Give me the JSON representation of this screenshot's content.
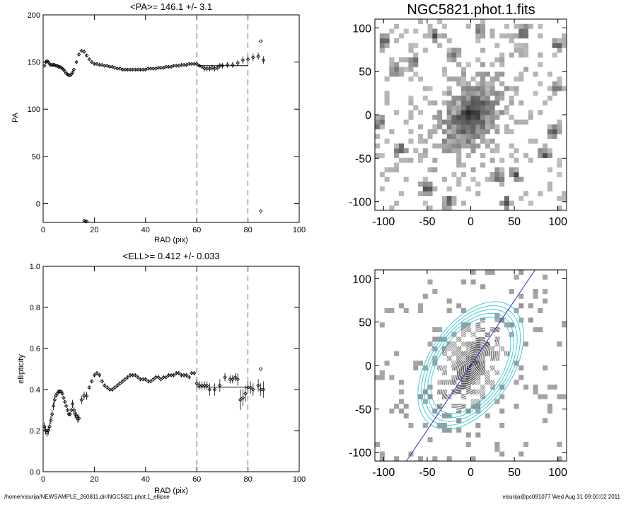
{
  "footer": {
    "path": "/home/visurija/NEWSAMPLE_260811.dir/NGC5821.phot.1_ellipse",
    "stamp": "visurija@pc091077  Wed Aug 31 09:00:02 2011"
  },
  "chart_data": [
    {
      "id": "pa",
      "type": "scatter",
      "title": "<PA>= 146.1 +/-   3.1",
      "xlabel": "RAD (pix)",
      "ylabel": "PA",
      "xlim": [
        0,
        100
      ],
      "ylim": [
        -20,
        200
      ],
      "xticks": [
        0,
        20,
        40,
        60,
        80,
        100
      ],
      "yticks": [
        0,
        50,
        100,
        150,
        200
      ],
      "vlines": [
        60,
        80
      ],
      "mean_segment": {
        "x": [
          60,
          80
        ],
        "y": 146.1
      },
      "x": [
        0.5,
        1,
        1.5,
        2,
        2.5,
        3,
        3.5,
        4,
        4.5,
        5,
        5.5,
        6,
        6.5,
        7,
        7.5,
        8,
        8.5,
        9,
        9.5,
        10,
        10.5,
        11,
        11.5,
        12,
        13,
        14,
        15,
        16,
        17,
        18,
        19,
        20,
        21,
        22,
        23,
        24,
        25,
        26,
        27,
        28,
        29,
        30,
        31,
        32,
        33,
        34,
        35,
        36,
        37,
        38,
        39,
        40,
        41,
        42,
        43,
        44,
        45,
        46,
        47,
        48,
        49,
        50,
        51,
        52,
        53,
        54,
        55,
        56,
        57,
        58,
        59,
        60,
        61,
        62,
        63,
        64,
        65,
        66,
        67,
        68,
        69,
        70,
        72,
        74,
        76,
        78,
        80,
        82,
        84,
        86
      ],
      "y": [
        146,
        150,
        151,
        150,
        148,
        147,
        147,
        147,
        147,
        146,
        146,
        145,
        145,
        144,
        143,
        142,
        140,
        138,
        137,
        136,
        136,
        137,
        139,
        142,
        150,
        158,
        162,
        161,
        157,
        153,
        150,
        148,
        148,
        147,
        147,
        146,
        146,
        145,
        145,
        144,
        143,
        143,
        142,
        142,
        142,
        142,
        142,
        142,
        142,
        142,
        142,
        142,
        143,
        143,
        143,
        143,
        144,
        144,
        144,
        145,
        145,
        145,
        146,
        146,
        146,
        147,
        147,
        147,
        148,
        148,
        148,
        148,
        146,
        145,
        143,
        143,
        143,
        144,
        143,
        144,
        146,
        146,
        147,
        147,
        149,
        152,
        153,
        155,
        156,
        152
      ],
      "err": [
        1,
        2,
        2,
        2,
        2,
        1,
        1,
        1,
        1,
        1,
        1,
        1,
        1,
        1,
        1,
        1,
        1,
        1,
        1,
        1,
        1,
        1,
        1,
        1,
        2,
        2,
        2,
        2,
        2,
        1,
        1,
        1,
        1,
        1,
        1,
        1,
        1,
        1,
        1,
        1,
        1,
        1,
        1,
        1,
        1,
        1,
        1,
        1,
        1,
        1,
        1,
        1,
        1,
        1,
        1,
        1,
        1,
        1,
        1,
        1,
        1,
        1,
        1,
        1,
        1,
        1,
        1,
        1,
        1,
        1,
        1,
        1,
        2,
        2,
        3,
        3,
        3,
        3,
        3,
        3,
        3,
        3,
        3,
        3,
        3,
        4,
        4,
        4,
        4,
        4
      ],
      "outliers": {
        "x": [
          16,
          16.5,
          17,
          85,
          85
        ],
        "y": [
          -18,
          -19,
          -19,
          -8,
          172
        ]
      }
    },
    {
      "id": "ell",
      "type": "scatter",
      "title": "<ELL>= 0.412 +/-  0.033",
      "xlabel": "RAD (pix)",
      "ylabel": "ellipticity",
      "xlim": [
        0,
        100
      ],
      "ylim": [
        0.0,
        1.0
      ],
      "xticks": [
        0,
        20,
        40,
        60,
        80,
        100
      ],
      "yticks": [
        0.0,
        0.2,
        0.4,
        0.6,
        0.8,
        1.0
      ],
      "vlines": [
        60,
        80
      ],
      "mean_segment": {
        "x": [
          60,
          80
        ],
        "y": 0.412
      },
      "x": [
        0.5,
        1,
        1.5,
        2,
        2.5,
        3,
        3.5,
        4,
        4.5,
        5,
        5.5,
        6,
        6.5,
        7,
        7.5,
        8,
        8.5,
        9,
        9.5,
        10,
        10.5,
        11,
        11.5,
        12,
        12.5,
        13,
        13.5,
        14,
        15,
        16,
        17,
        18,
        19,
        20,
        21,
        22,
        23,
        24,
        25,
        26,
        27,
        28,
        29,
        30,
        31,
        32,
        33,
        34,
        35,
        36,
        37,
        38,
        39,
        40,
        41,
        42,
        43,
        44,
        45,
        46,
        47,
        48,
        49,
        50,
        51,
        52,
        53,
        54,
        55,
        56,
        57,
        58,
        59,
        60,
        61,
        62,
        63,
        64,
        65,
        67,
        69,
        71,
        73,
        74,
        75,
        76,
        77,
        78,
        79,
        80,
        81,
        82,
        84,
        85,
        86
      ],
      "y": [
        0.22,
        0.2,
        0.19,
        0.2,
        0.22,
        0.25,
        0.28,
        0.32,
        0.35,
        0.37,
        0.38,
        0.39,
        0.39,
        0.39,
        0.38,
        0.36,
        0.34,
        0.32,
        0.3,
        0.28,
        0.28,
        0.3,
        0.33,
        0.3,
        0.28,
        0.27,
        0.26,
        0.26,
        0.35,
        0.37,
        0.37,
        0.41,
        0.44,
        0.47,
        0.48,
        0.47,
        0.44,
        0.42,
        0.41,
        0.4,
        0.4,
        0.41,
        0.42,
        0.43,
        0.44,
        0.45,
        0.46,
        0.47,
        0.47,
        0.47,
        0.46,
        0.45,
        0.45,
        0.45,
        0.44,
        0.44,
        0.45,
        0.46,
        0.46,
        0.45,
        0.46,
        0.46,
        0.47,
        0.47,
        0.47,
        0.48,
        0.48,
        0.47,
        0.47,
        0.47,
        0.46,
        0.48,
        0.48,
        0.43,
        0.42,
        0.42,
        0.42,
        0.42,
        0.4,
        0.4,
        0.42,
        0.46,
        0.45,
        0.45,
        0.46,
        0.45,
        0.35,
        0.36,
        0.38,
        0.41,
        0.41,
        0.4,
        0.42,
        0.4,
        0.4
      ],
      "err": [
        0.02,
        0.02,
        0.02,
        0.02,
        0.02,
        0.02,
        0.02,
        0.02,
        0.02,
        0.01,
        0.01,
        0.01,
        0.01,
        0.01,
        0.01,
        0.01,
        0.01,
        0.01,
        0.01,
        0.01,
        0.01,
        0.01,
        0.02,
        0.02,
        0.02,
        0.02,
        0.02,
        0.02,
        0.02,
        0.02,
        0.02,
        0.01,
        0.01,
        0.01,
        0.01,
        0.01,
        0.01,
        0.01,
        0.01,
        0.01,
        0.01,
        0.01,
        0.01,
        0.01,
        0.01,
        0.01,
        0.01,
        0.01,
        0.01,
        0.01,
        0.01,
        0.01,
        0.01,
        0.01,
        0.01,
        0.01,
        0.01,
        0.01,
        0.01,
        0.01,
        0.01,
        0.01,
        0.01,
        0.01,
        0.01,
        0.01,
        0.01,
        0.01,
        0.01,
        0.01,
        0.01,
        0.01,
        0.01,
        0.02,
        0.02,
        0.02,
        0.02,
        0.02,
        0.03,
        0.03,
        0.03,
        0.02,
        0.02,
        0.02,
        0.02,
        0.03,
        0.05,
        0.04,
        0.04,
        0.03,
        0.03,
        0.03,
        0.03,
        0.03,
        0.04
      ],
      "outliers": {
        "x": [
          85
        ],
        "y": [
          0.5
        ]
      }
    },
    {
      "id": "image",
      "type": "heatmap",
      "title": "NGC5821.phot.1.fits",
      "xlim": [
        -110,
        110
      ],
      "ylim": [
        -110,
        110
      ],
      "xticks": [
        -100,
        -50,
        0,
        50,
        100
      ],
      "yticks": [
        -100,
        -50,
        0,
        50,
        100
      ],
      "galaxy": {
        "center": [
          0,
          0
        ],
        "pa_deg": 146.1,
        "ellipticity": 0.412,
        "scale_pix": 28
      },
      "blobs": [
        [
          -85,
          52
        ],
        [
          -100,
          85
        ],
        [
          -25,
          -100
        ],
        [
          32,
          -70
        ],
        [
          52,
          -68
        ],
        [
          -80,
          -40
        ],
        [
          100,
          80
        ],
        [
          95,
          -20
        ],
        [
          -40,
          90
        ],
        [
          60,
          95
        ],
        [
          -50,
          -85
        ],
        [
          -105,
          -10
        ],
        [
          85,
          -45
        ],
        [
          10,
          100
        ],
        [
          -65,
          60
        ],
        [
          40,
          -100
        ],
        [
          100,
          30
        ],
        [
          -20,
          70
        ]
      ]
    },
    {
      "id": "contours",
      "type": "heatmap",
      "xlim": [
        -110,
        110
      ],
      "ylim": [
        -110,
        110
      ],
      "xticks": [
        -100,
        -50,
        0,
        50,
        100
      ],
      "yticks": [
        -100,
        -50,
        0,
        50,
        100
      ],
      "pa_deg": 146.1,
      "ellipticity": 0.412,
      "white_contours_sma": [
        4,
        7,
        10,
        13,
        16,
        19,
        22,
        25,
        28,
        31,
        34,
        37,
        40,
        43,
        46,
        49,
        52,
        55,
        58
      ],
      "cyan_contours_sma": [
        62,
        67,
        72,
        77,
        82
      ],
      "colors": {
        "contour": "#ffffff",
        "outer": "#47c9d6",
        "major_axis": "#3030c0"
      }
    }
  ]
}
